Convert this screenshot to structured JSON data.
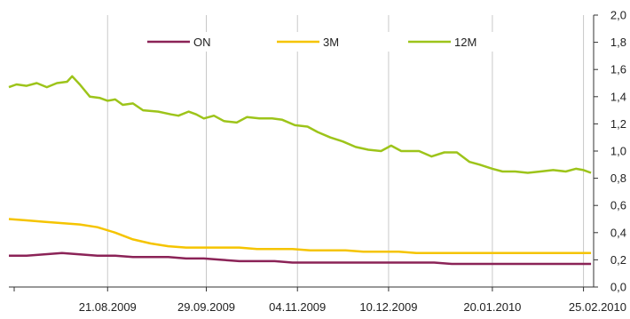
{
  "chart_data": {
    "type": "line",
    "title": "",
    "xlabel": "",
    "ylabel": "",
    "ylim": [
      0,
      2.0
    ],
    "yticks": [
      "0,0",
      "0,2",
      "0,4",
      "0,6",
      "0,8",
      "1,0",
      "1,2",
      "1,4",
      "1,6",
      "1,8",
      "2,0"
    ],
    "xlim": [
      "2009-07-13",
      "2010-03-01"
    ],
    "xticks": [
      {
        "date": "2009-08-21",
        "label": "21.08.2009"
      },
      {
        "date": "2009-09-29",
        "label": "29.09.2009"
      },
      {
        "date": "2009-11-04",
        "label": "04.11.2009"
      },
      {
        "date": "2009-12-10",
        "label": "10.12.2009"
      },
      {
        "date": "2010-01-20",
        "label": "20.01.2010"
      },
      {
        "date": "2010-02-25",
        "label": "25.02.2010"
      }
    ],
    "grid": "vertical",
    "legend": "top-center",
    "series": [
      {
        "name": "ON",
        "color": "#8b2357",
        "points": [
          [
            "2009-07-13",
            0.23
          ],
          [
            "2009-07-20",
            0.23
          ],
          [
            "2009-07-27",
            0.24
          ],
          [
            "2009-08-03",
            0.25
          ],
          [
            "2009-08-10",
            0.24
          ],
          [
            "2009-08-17",
            0.23
          ],
          [
            "2009-08-24",
            0.23
          ],
          [
            "2009-08-31",
            0.22
          ],
          [
            "2009-09-07",
            0.22
          ],
          [
            "2009-09-14",
            0.22
          ],
          [
            "2009-09-21",
            0.21
          ],
          [
            "2009-09-28",
            0.21
          ],
          [
            "2009-10-05",
            0.2
          ],
          [
            "2009-10-12",
            0.19
          ],
          [
            "2009-10-19",
            0.19
          ],
          [
            "2009-10-26",
            0.19
          ],
          [
            "2009-11-02",
            0.18
          ],
          [
            "2009-11-09",
            0.18
          ],
          [
            "2009-11-16",
            0.18
          ],
          [
            "2009-11-23",
            0.18
          ],
          [
            "2009-11-30",
            0.18
          ],
          [
            "2009-12-07",
            0.18
          ],
          [
            "2009-12-14",
            0.18
          ],
          [
            "2009-12-21",
            0.18
          ],
          [
            "2009-12-28",
            0.18
          ],
          [
            "2010-01-04",
            0.17
          ],
          [
            "2010-01-11",
            0.17
          ],
          [
            "2010-01-18",
            0.17
          ],
          [
            "2010-01-25",
            0.17
          ],
          [
            "2010-02-01",
            0.17
          ],
          [
            "2010-02-08",
            0.17
          ],
          [
            "2010-02-15",
            0.17
          ],
          [
            "2010-02-22",
            0.17
          ],
          [
            "2010-02-28",
            0.17
          ]
        ]
      },
      {
        "name": "3M",
        "color": "#f5c400",
        "points": [
          [
            "2009-07-13",
            0.5
          ],
          [
            "2009-07-20",
            0.49
          ],
          [
            "2009-07-27",
            0.48
          ],
          [
            "2009-08-03",
            0.47
          ],
          [
            "2009-08-10",
            0.46
          ],
          [
            "2009-08-17",
            0.44
          ],
          [
            "2009-08-24",
            0.4
          ],
          [
            "2009-08-31",
            0.35
          ],
          [
            "2009-09-07",
            0.32
          ],
          [
            "2009-09-14",
            0.3
          ],
          [
            "2009-09-21",
            0.29
          ],
          [
            "2009-09-28",
            0.29
          ],
          [
            "2009-10-05",
            0.29
          ],
          [
            "2009-10-12",
            0.29
          ],
          [
            "2009-10-19",
            0.28
          ],
          [
            "2009-10-26",
            0.28
          ],
          [
            "2009-11-02",
            0.28
          ],
          [
            "2009-11-09",
            0.27
          ],
          [
            "2009-11-16",
            0.27
          ],
          [
            "2009-11-23",
            0.27
          ],
          [
            "2009-11-30",
            0.26
          ],
          [
            "2009-12-07",
            0.26
          ],
          [
            "2009-12-14",
            0.26
          ],
          [
            "2009-12-21",
            0.25
          ],
          [
            "2009-12-28",
            0.25
          ],
          [
            "2010-01-04",
            0.25
          ],
          [
            "2010-01-11",
            0.25
          ],
          [
            "2010-01-18",
            0.25
          ],
          [
            "2010-01-25",
            0.25
          ],
          [
            "2010-02-01",
            0.25
          ],
          [
            "2010-02-08",
            0.25
          ],
          [
            "2010-02-15",
            0.25
          ],
          [
            "2010-02-22",
            0.25
          ],
          [
            "2010-02-28",
            0.25
          ]
        ]
      },
      {
        "name": "12M",
        "color": "#9dc41a",
        "points": [
          [
            "2009-07-13",
            1.47
          ],
          [
            "2009-07-16",
            1.49
          ],
          [
            "2009-07-20",
            1.48
          ],
          [
            "2009-07-24",
            1.5
          ],
          [
            "2009-07-28",
            1.47
          ],
          [
            "2009-08-01",
            1.5
          ],
          [
            "2009-08-05",
            1.51
          ],
          [
            "2009-08-07",
            1.55
          ],
          [
            "2009-08-10",
            1.49
          ],
          [
            "2009-08-14",
            1.4
          ],
          [
            "2009-08-18",
            1.39
          ],
          [
            "2009-08-21",
            1.37
          ],
          [
            "2009-08-24",
            1.38
          ],
          [
            "2009-08-27",
            1.34
          ],
          [
            "2009-08-31",
            1.35
          ],
          [
            "2009-09-04",
            1.3
          ],
          [
            "2009-09-10",
            1.29
          ],
          [
            "2009-09-15",
            1.27
          ],
          [
            "2009-09-18",
            1.26
          ],
          [
            "2009-09-22",
            1.29
          ],
          [
            "2009-09-25",
            1.27
          ],
          [
            "2009-09-28",
            1.24
          ],
          [
            "2009-10-02",
            1.26
          ],
          [
            "2009-10-06",
            1.22
          ],
          [
            "2009-10-11",
            1.21
          ],
          [
            "2009-10-15",
            1.25
          ],
          [
            "2009-10-20",
            1.24
          ],
          [
            "2009-10-25",
            1.24
          ],
          [
            "2009-10-29",
            1.23
          ],
          [
            "2009-11-03",
            1.19
          ],
          [
            "2009-11-08",
            1.18
          ],
          [
            "2009-11-12",
            1.14
          ],
          [
            "2009-11-17",
            1.1
          ],
          [
            "2009-11-22",
            1.07
          ],
          [
            "2009-11-27",
            1.03
          ],
          [
            "2009-12-02",
            1.01
          ],
          [
            "2009-12-07",
            1.0
          ],
          [
            "2009-12-11",
            1.04
          ],
          [
            "2009-12-15",
            1.0
          ],
          [
            "2009-12-22",
            1.0
          ],
          [
            "2009-12-27",
            0.96
          ],
          [
            "2010-01-01",
            0.99
          ],
          [
            "2010-01-06",
            0.99
          ],
          [
            "2010-01-11",
            0.92
          ],
          [
            "2010-01-15",
            0.9
          ],
          [
            "2010-01-20",
            0.87
          ],
          [
            "2010-01-24",
            0.85
          ],
          [
            "2010-01-29",
            0.85
          ],
          [
            "2010-02-03",
            0.84
          ],
          [
            "2010-02-08",
            0.85
          ],
          [
            "2010-02-13",
            0.86
          ],
          [
            "2010-02-18",
            0.85
          ],
          [
            "2010-02-22",
            0.87
          ],
          [
            "2010-02-25",
            0.86
          ],
          [
            "2010-02-28",
            0.84
          ]
        ]
      }
    ]
  }
}
